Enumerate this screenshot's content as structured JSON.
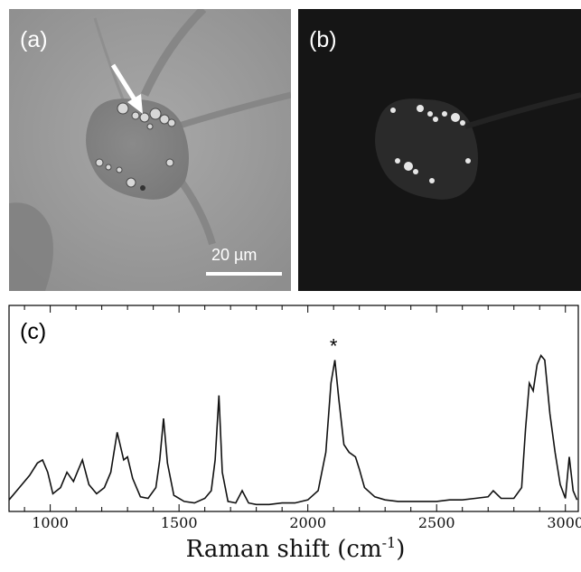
{
  "panels": {
    "a": {
      "label": "(a)",
      "scale_bar": "20 µm"
    },
    "b": {
      "label": "(b)"
    },
    "c": {
      "label": "(c)"
    }
  },
  "chart_data": {
    "type": "line",
    "title": "",
    "xlabel": "Raman shift (cm-1)",
    "xlabel_main": "Raman shift (cm",
    "xlabel_sup": "-1",
    "xlabel_end": ")",
    "ylabel": "",
    "xlim": [
      840,
      3050
    ],
    "ylim": [
      0,
      1
    ],
    "x_ticks": [
      1000,
      1500,
      2000,
      2500,
      3000
    ],
    "x_tick_labels": [
      "1000",
      "1500",
      "2000",
      "2500",
      "3000"
    ],
    "annotation": {
      "text": "*",
      "x": 2100
    },
    "series": [
      {
        "x": [
          840,
          880,
          920,
          950,
          970,
          990,
          1010,
          1040,
          1065,
          1090,
          1105,
          1125,
          1150,
          1180,
          1210,
          1235,
          1260,
          1285,
          1300,
          1320,
          1350,
          1380,
          1410,
          1425,
          1440,
          1455,
          1480,
          1520,
          1560,
          1600,
          1625,
          1640,
          1655,
          1668,
          1690,
          1720,
          1745,
          1770,
          1800,
          1850,
          1900,
          1950,
          2000,
          2040,
          2070,
          2090,
          2105,
          2120,
          2140,
          2160,
          2185,
          2200,
          2220,
          2260,
          2300,
          2350,
          2400,
          2450,
          2500,
          2550,
          2600,
          2650,
          2700,
          2720,
          2750,
          2800,
          2830,
          2845,
          2860,
          2875,
          2890,
          2905,
          2920,
          2940,
          2960,
          2980,
          3000,
          3015,
          3030,
          3045
        ],
        "y": [
          0.04,
          0.12,
          0.2,
          0.28,
          0.3,
          0.22,
          0.08,
          0.12,
          0.22,
          0.16,
          0.22,
          0.3,
          0.14,
          0.08,
          0.12,
          0.22,
          0.48,
          0.3,
          0.32,
          0.18,
          0.06,
          0.05,
          0.12,
          0.3,
          0.57,
          0.28,
          0.07,
          0.03,
          0.02,
          0.05,
          0.1,
          0.3,
          0.72,
          0.22,
          0.03,
          0.02,
          0.1,
          0.02,
          0.01,
          0.01,
          0.02,
          0.02,
          0.04,
          0.1,
          0.35,
          0.8,
          0.95,
          0.7,
          0.4,
          0.35,
          0.32,
          0.24,
          0.12,
          0.06,
          0.04,
          0.03,
          0.03,
          0.03,
          0.03,
          0.04,
          0.04,
          0.05,
          0.06,
          0.1,
          0.05,
          0.05,
          0.12,
          0.5,
          0.8,
          0.75,
          0.92,
          0.98,
          0.95,
          0.6,
          0.35,
          0.14,
          0.05,
          0.32,
          0.1,
          0.04
        ]
      }
    ]
  }
}
